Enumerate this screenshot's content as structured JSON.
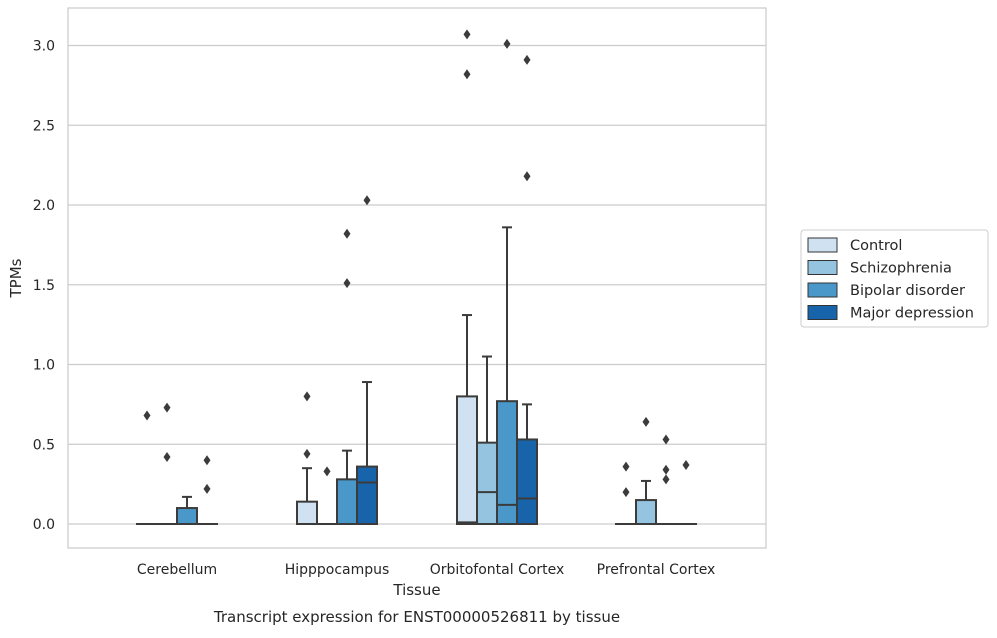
{
  "chart_data": {
    "type": "box",
    "title": "",
    "caption": "Transcript expression for ENST00000526811 by tissue",
    "xlabel": "Tissue",
    "ylabel": "TPMs",
    "ylim": [
      -0.15,
      3.23
    ],
    "yticks": [
      "0.0",
      "0.5",
      "1.0",
      "1.5",
      "2.0",
      "2.5",
      "3.0"
    ],
    "grid": "horizontal",
    "legend_position": "right",
    "categories": [
      "Cerebellum",
      "Hipppocampus",
      "Orbitofontal Cortex",
      "Prefrontal Cortex"
    ],
    "series": [
      {
        "name": "Control",
        "color": "#d0e1f2",
        "boxes": [
          {
            "q1": 0,
            "median": 0,
            "q3": 0,
            "whisker_low": 0,
            "whisker_high": 0,
            "outliers": [
              0.68
            ]
          },
          {
            "q1": 0,
            "median": 0,
            "q3": 0.14,
            "whisker_low": 0,
            "whisker_high": 0.35,
            "outliers": [
              0.44,
              0.8
            ]
          },
          {
            "q1": 0,
            "median": 0.01,
            "q3": 0.8,
            "whisker_low": 0,
            "whisker_high": 1.31,
            "outliers": [
              2.82,
              3.07
            ]
          },
          {
            "q1": 0,
            "median": 0,
            "q3": 0,
            "whisker_low": 0,
            "whisker_high": 0,
            "outliers": [
              0.2,
              0.36
            ]
          }
        ]
      },
      {
        "name": "Schizophrenia",
        "color": "#94c4df",
        "boxes": [
          {
            "q1": 0,
            "median": 0,
            "q3": 0,
            "whisker_low": 0,
            "whisker_high": 0,
            "outliers": [
              0.42,
              0.73
            ]
          },
          {
            "q1": 0,
            "median": 0,
            "q3": 0,
            "whisker_low": 0,
            "whisker_high": 0,
            "outliers": [
              0.33
            ]
          },
          {
            "q1": 0,
            "median": 0.2,
            "q3": 0.51,
            "whisker_low": 0,
            "whisker_high": 1.05,
            "outliers": []
          },
          {
            "q1": 0,
            "median": 0,
            "q3": 0.15,
            "whisker_low": 0,
            "whisker_high": 0.27,
            "outliers": [
              0.64
            ]
          }
        ]
      },
      {
        "name": "Bipolar disorder",
        "color": "#4a98c9",
        "boxes": [
          {
            "q1": 0,
            "median": 0,
            "q3": 0.1,
            "whisker_low": 0,
            "whisker_high": 0.17,
            "outliers": []
          },
          {
            "q1": 0,
            "median": 0,
            "q3": 0.28,
            "whisker_low": 0,
            "whisker_high": 0.46,
            "outliers": [
              1.51,
              1.82
            ]
          },
          {
            "q1": 0,
            "median": 0.12,
            "q3": 0.77,
            "whisker_low": 0,
            "whisker_high": 1.86,
            "outliers": [
              3.01
            ]
          },
          {
            "q1": 0,
            "median": 0,
            "q3": 0,
            "whisker_low": 0,
            "whisker_high": 0,
            "outliers": [
              0.28,
              0.34,
              0.53
            ]
          }
        ]
      },
      {
        "name": "Major depression",
        "color": "#1764ab",
        "boxes": [
          {
            "q1": 0,
            "median": 0,
            "q3": 0,
            "whisker_low": 0,
            "whisker_high": 0,
            "outliers": [
              0.22,
              0.4
            ]
          },
          {
            "q1": 0,
            "median": 0.26,
            "q3": 0.36,
            "whisker_low": 0,
            "whisker_high": 0.89,
            "outliers": [
              2.03
            ]
          },
          {
            "q1": 0,
            "median": 0.16,
            "q3": 0.53,
            "whisker_low": 0,
            "whisker_high": 0.75,
            "outliers": [
              2.18,
              2.91
            ]
          },
          {
            "q1": 0,
            "median": 0,
            "q3": 0,
            "whisker_low": 0,
            "whisker_high": 0,
            "outliers": [
              0.37
            ]
          }
        ]
      }
    ]
  }
}
